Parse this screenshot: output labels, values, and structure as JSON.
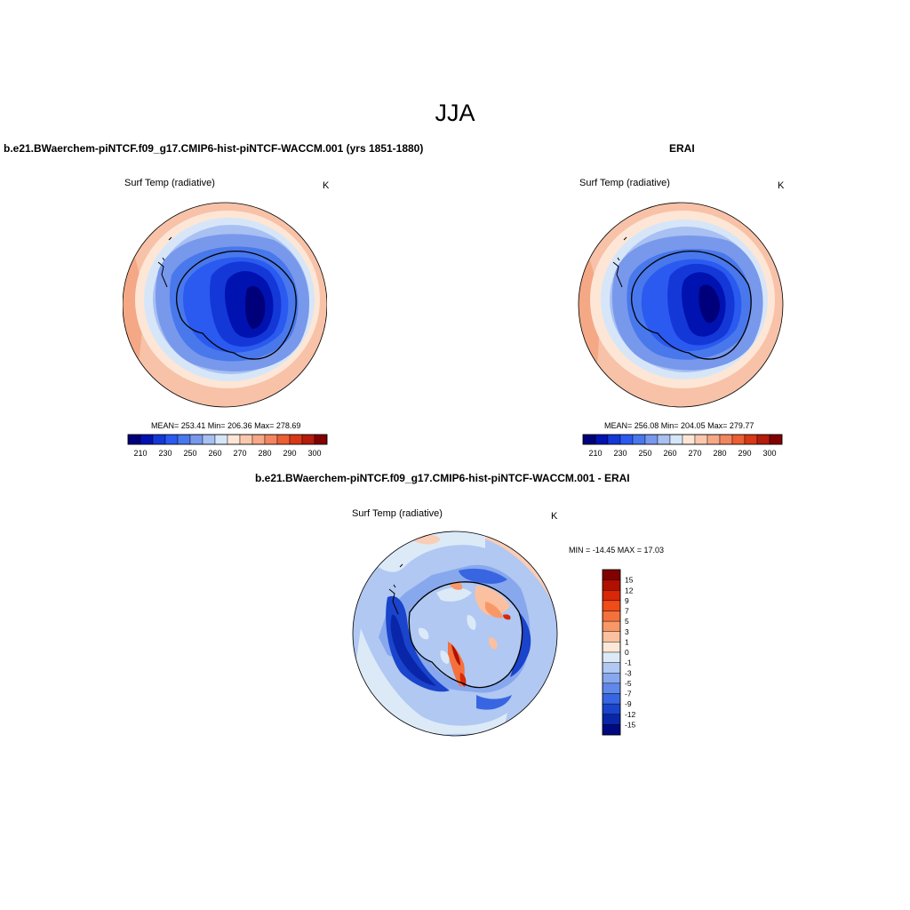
{
  "figure": {
    "title": "JJA"
  },
  "panels": [
    {
      "title": "b.e21.BWaerchem-piNTCF.f09_g17.CMIP6-hist-piNTCF-WACCM.001 (yrs 1851-1880)",
      "variable": "Surf Temp (radiative)",
      "units": "K",
      "stats": "MEAN= 253.41  Min= 206.36  Max= 278.69"
    },
    {
      "title": "ERAI",
      "variable": "Surf Temp (radiative)",
      "units": "K",
      "stats": "MEAN= 256.08  Min= 204.05  Max= 279.77"
    },
    {
      "title": "b.e21.BWaerchem-piNTCF.f09_g17.CMIP6-hist-piNTCF-WACCM.001 - ERAI",
      "variable": "Surf Temp (radiative)",
      "units": "K",
      "stats": "MIN = -14.45 MAX =  17.03"
    }
  ],
  "abs_colorbar": {
    "labels": [
      "210",
      "230",
      "250",
      "260",
      "270",
      "280",
      "290",
      "300"
    ],
    "colors": [
      "#00007a",
      "#0012b0",
      "#1438d8",
      "#2a5af0",
      "#4878ec",
      "#7898ec",
      "#a8c0f2",
      "#d6e6f8",
      "#fde6d6",
      "#f9c8ae",
      "#f6a888",
      "#f28660",
      "#ec5e34",
      "#d83818",
      "#b41c0c",
      "#820000"
    ]
  },
  "diff_colorbar": {
    "labels": [
      "15",
      "12",
      "9",
      "7",
      "5",
      "3",
      "1",
      "0",
      "-1",
      "-3",
      "-5",
      "-7",
      "-9",
      "-12",
      "-15"
    ],
    "colors": [
      "#820000",
      "#b01000",
      "#d82808",
      "#f04c18",
      "#f4703c",
      "#f89868",
      "#fbc0a0",
      "#fde8d8",
      "#dceaf8",
      "#b0c8f2",
      "#88a8ee",
      "#6088ea",
      "#3866e2",
      "#1a44cc",
      "#0a26a8",
      "#000a80"
    ]
  }
}
